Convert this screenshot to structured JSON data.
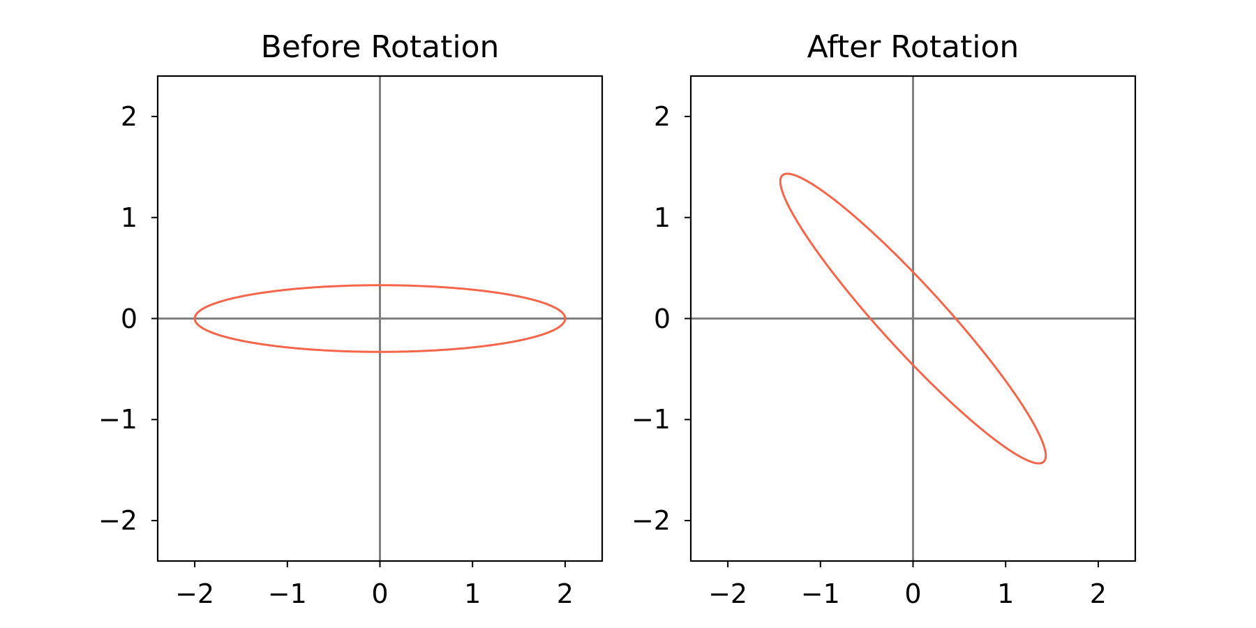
{
  "chart_data": [
    {
      "type": "line",
      "title": "Before Rotation",
      "xlim": [
        -2.4,
        2.4
      ],
      "ylim": [
        -2.4,
        2.4
      ],
      "xticks": [
        -2,
        -1,
        0,
        1,
        2
      ],
      "yticks": [
        -2,
        -1,
        0,
        1,
        2
      ],
      "xtick_labels": [
        "−2",
        "−1",
        "0",
        "1",
        "2"
      ],
      "ytick_labels": [
        "−2",
        "−1",
        "0",
        "1",
        "2"
      ],
      "xlabel": "",
      "ylabel": "",
      "grid": false,
      "reference_lines": {
        "x": 0,
        "y": 0,
        "color": "#808080"
      },
      "series": [
        {
          "shape": "ellipse",
          "center": [
            0,
            0
          ],
          "semi_axes": [
            2.0,
            0.33
          ],
          "rotation_deg": 0,
          "color": "#f4654a"
        }
      ]
    },
    {
      "type": "line",
      "title": "After Rotation",
      "xlim": [
        -2.4,
        2.4
      ],
      "ylim": [
        -2.4,
        2.4
      ],
      "xticks": [
        -2,
        -1,
        0,
        1,
        2
      ],
      "yticks": [
        -2,
        -1,
        0,
        1,
        2
      ],
      "xtick_labels": [
        "−2",
        "−1",
        "0",
        "1",
        "2"
      ],
      "ytick_labels": [
        "−2",
        "−1",
        "0",
        "1",
        "2"
      ],
      "xlabel": "",
      "ylabel": "",
      "grid": false,
      "reference_lines": {
        "x": 0,
        "y": 0,
        "color": "#808080"
      },
      "series": [
        {
          "shape": "ellipse",
          "center": [
            0,
            0
          ],
          "semi_axes": [
            2.0,
            0.33
          ],
          "rotation_deg": -45,
          "color": "#f4654a"
        }
      ]
    }
  ]
}
